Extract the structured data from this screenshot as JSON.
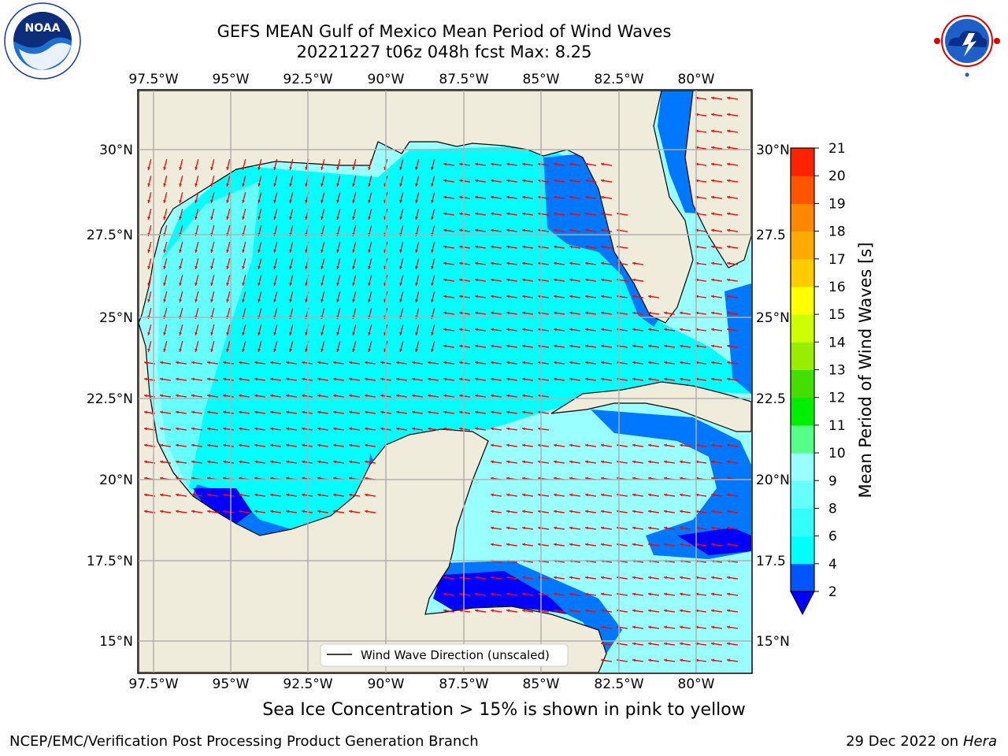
{
  "header": {
    "title_line1": "GEFS MEAN Gulf of Mexico Mean Period of Wind Waves",
    "title_line2": "20221227 t06z 048h fcst   Max: 8.25"
  },
  "logos": {
    "left": "NOAA",
    "right": "NATIONAL WEATHER SERVICE"
  },
  "map": {
    "lon_labels": [
      "97.5°W",
      "95°W",
      "92.5°W",
      "90°W",
      "87.5°W",
      "85°W",
      "82.5°W",
      "80°W"
    ],
    "lat_labels_left": [
      "30°N",
      "27.5°N",
      "25°N",
      "22.5°N",
      "20°N",
      "17.5°N",
      "15°N"
    ],
    "lat_labels_right": [
      "30°N",
      "27.5",
      "25°N",
      "22.5",
      "20°N",
      "17.5",
      "15°N"
    ],
    "legend_label": "Wind Wave Direction (unscaled)",
    "land_color": "#efecdc",
    "arrow_color": "#ff0000",
    "wind_wave_direction": "southwest / west"
  },
  "colorbar": {
    "label": "Mean Period of Wind Waves [s]",
    "ticks": [
      "2",
      "4",
      "6",
      "8",
      "9",
      "10",
      "11",
      "12",
      "13",
      "14",
      "15",
      "16",
      "17",
      "18",
      "19",
      "20",
      "21"
    ],
    "colors": [
      "#0055ff",
      "#00ffff",
      "#33ffff",
      "#66ffff",
      "#99ffff",
      "#55ff88",
      "#00ee00",
      "#44dd00",
      "#99ee00",
      "#ccff00",
      "#ffff00",
      "#ffcc00",
      "#ffaa00",
      "#ff8800",
      "#ff5500",
      "#ff2200"
    ],
    "under_color": "#0000ff"
  },
  "footer": {
    "sea_ice_note": "Sea Ice Concentration > 15% is shown in pink to yellow",
    "credit": "NCEP/EMC/Verification Post Processing Product Generation Branch",
    "date": "29 Dec 2022 on",
    "host": "Hera"
  }
}
